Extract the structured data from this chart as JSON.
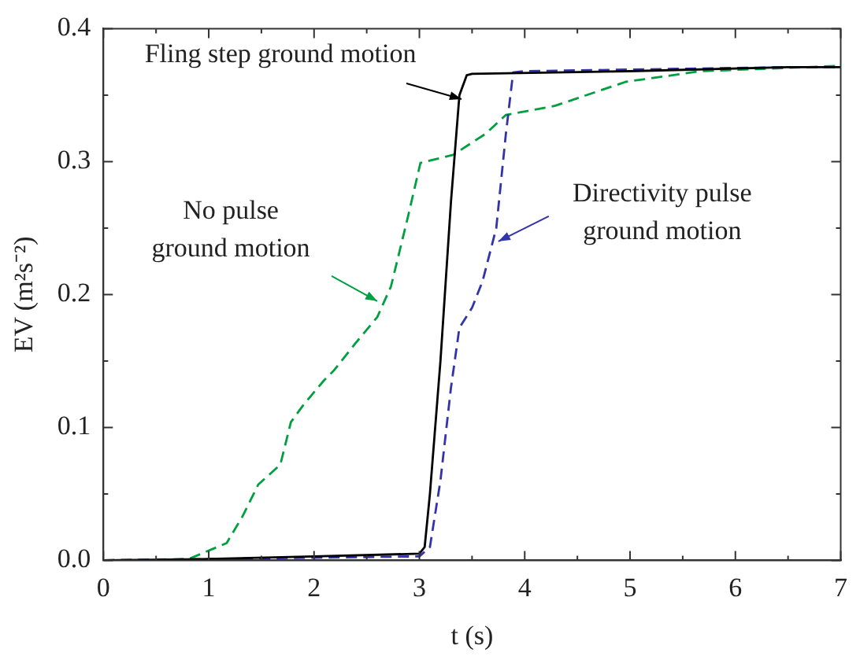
{
  "chart_data": {
    "type": "line",
    "xlabel": "t (s)",
    "ylabel": "EV (m²s⁻²)",
    "xlim": [
      0,
      7
    ],
    "ylim": [
      0,
      0.4
    ],
    "xticks": [
      0,
      {
        "value": 0.5,
        "label": null
      },
      1,
      {
        "value": 1.5,
        "label": null
      },
      2,
      {
        "value": 2.5,
        "label": null
      },
      3,
      {
        "value": 3.5,
        "label": null
      },
      4,
      {
        "value": 4.5,
        "label": null
      },
      5,
      {
        "value": 5.5,
        "label": null
      },
      6,
      {
        "value": 6.5,
        "label": null
      },
      7
    ],
    "yticks": [
      {
        "value": 0,
        "label": "0.0"
      },
      {
        "value": 0.05,
        "label": null
      },
      0.1,
      {
        "value": 0.15,
        "label": null
      },
      0.2,
      {
        "value": 0.25,
        "label": null
      },
      0.3,
      {
        "value": 0.35,
        "label": null
      },
      0.4
    ],
    "grid": false,
    "legend": false,
    "marker": "none",
    "series": [
      {
        "color": "#000000",
        "line_style": "solid",
        "x": [
          0,
          1,
          2,
          3,
          3.05,
          3.1,
          3.2,
          3.3,
          3.38,
          3.45,
          3.5,
          5,
          6.5,
          7
        ],
        "values": [
          0,
          0.001,
          0.003,
          0.005,
          0.01,
          0.05,
          0.15,
          0.27,
          0.35,
          0.365,
          0.366,
          0.368,
          0.371,
          0.371
        ]
      },
      {
        "color": "#3333aa",
        "line_style": "dashed",
        "x": [
          0,
          1,
          2,
          3,
          3.1,
          3.2,
          3.3,
          3.38,
          3.5,
          3.6,
          3.73,
          3.82,
          3.89,
          4,
          6.5,
          7
        ],
        "values": [
          0,
          0.001,
          0.002,
          0.003,
          0.01,
          0.06,
          0.13,
          0.175,
          0.19,
          0.21,
          0.25,
          0.32,
          0.367,
          0.368,
          0.371,
          0.371
        ]
      },
      {
        "color": "#00a040",
        "line_style": "dashed",
        "x": [
          0,
          0.81,
          1.17,
          1.32,
          1.47,
          1.68,
          1.78,
          1.89,
          2.09,
          2.19,
          2.39,
          2.6,
          2.73,
          2.89,
          3.01,
          3.32,
          3.63,
          3.82,
          4.29,
          4.96,
          5.67,
          7
        ],
        "values": [
          0,
          0.001,
          0.013,
          0.033,
          0.057,
          0.072,
          0.104,
          0.116,
          0.135,
          0.143,
          0.163,
          0.183,
          0.206,
          0.258,
          0.299,
          0.305,
          0.321,
          0.335,
          0.342,
          0.36,
          0.368,
          0.372
        ]
      }
    ],
    "annotations": [
      {
        "text": "Fling step ground motion",
        "x": 3.4,
        "y": 0.347
      },
      {
        "text": "No pulse ground motion",
        "x": 2.6,
        "y": 0.195
      },
      {
        "text": "Directivity pulse ground motion",
        "x": 3.75,
        "y": 0.24
      }
    ]
  }
}
